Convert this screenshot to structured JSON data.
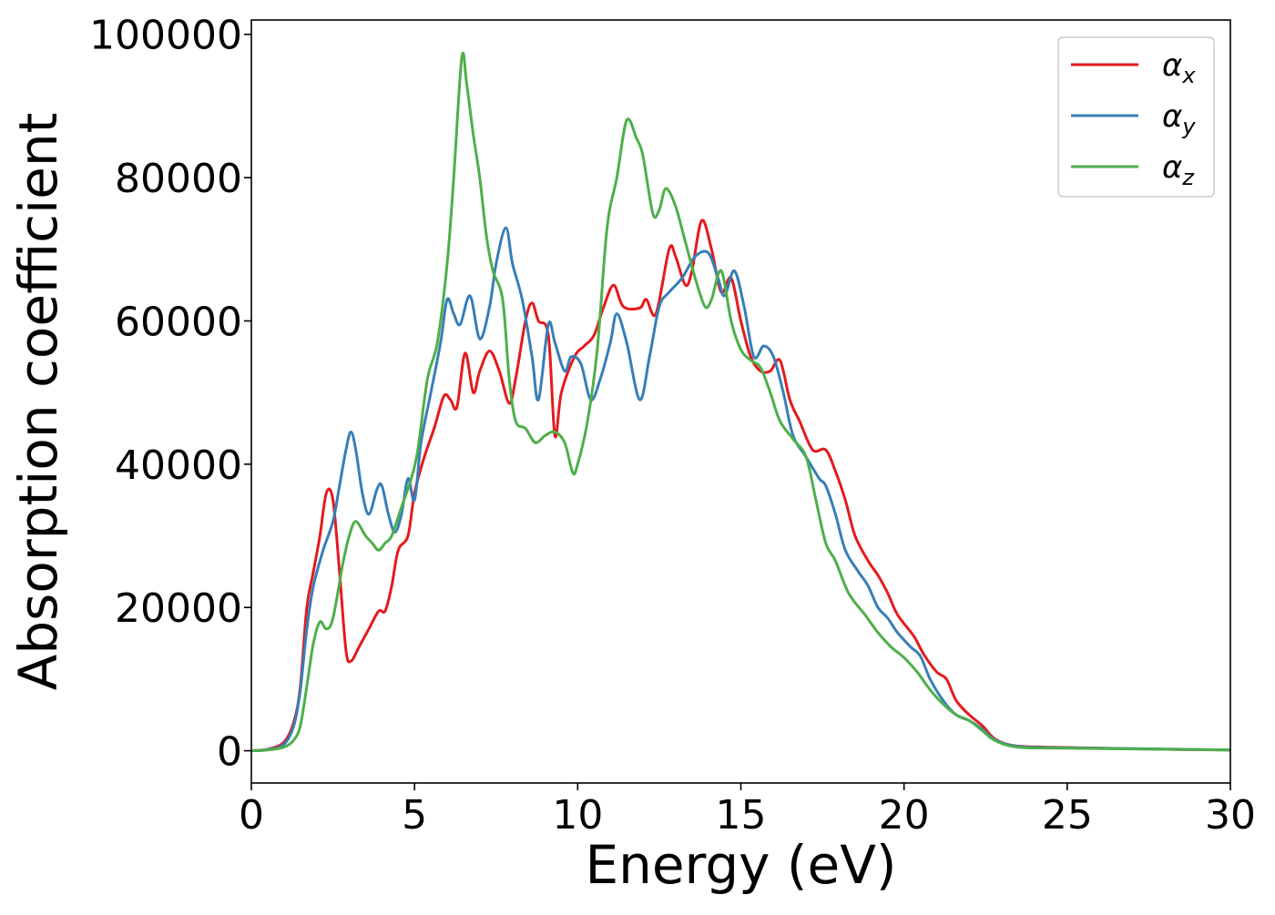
{
  "chart_data": {
    "type": "line",
    "title": "",
    "xlabel": "Energy (eV)",
    "ylabel": "Absorption coefficient",
    "xlim": [
      0,
      30
    ],
    "ylim": [
      -4500,
      102000
    ],
    "xticks": [
      0,
      5,
      10,
      15,
      20,
      25,
      30
    ],
    "xtick_labels": [
      "0",
      "5",
      "10",
      "15",
      "20",
      "25",
      "30"
    ],
    "yticks": [
      0,
      20000,
      40000,
      60000,
      80000,
      100000
    ],
    "ytick_labels": [
      "0",
      "20000",
      "40000",
      "60000",
      "80000",
      "100000"
    ],
    "grid": false,
    "legend": {
      "position": "top-right"
    },
    "series": [
      {
        "name": "α_x",
        "label_main": "α",
        "label_sub": "x",
        "color": "#e41a1c",
        "points": [
          [
            0,
            0
          ],
          [
            0.5,
            200
          ],
          [
            1.0,
            1200
          ],
          [
            1.3,
            4000
          ],
          [
            1.5,
            9000
          ],
          [
            1.7,
            20000
          ],
          [
            1.9,
            25000
          ],
          [
            2.1,
            30000
          ],
          [
            2.3,
            36000
          ],
          [
            2.5,
            35000
          ],
          [
            2.7,
            25000
          ],
          [
            2.9,
            14000
          ],
          [
            3.05,
            12500
          ],
          [
            3.3,
            14500
          ],
          [
            3.6,
            17000
          ],
          [
            3.9,
            19500
          ],
          [
            4.1,
            19500
          ],
          [
            4.3,
            23000
          ],
          [
            4.5,
            28000
          ],
          [
            4.8,
            30000
          ],
          [
            5.0,
            36000
          ],
          [
            5.3,
            41000
          ],
          [
            5.6,
            45000
          ],
          [
            5.9,
            49500
          ],
          [
            6.1,
            49000
          ],
          [
            6.3,
            48000
          ],
          [
            6.55,
            55500
          ],
          [
            6.8,
            50000
          ],
          [
            7.0,
            53000
          ],
          [
            7.3,
            55800
          ],
          [
            7.6,
            53000
          ],
          [
            7.9,
            48500
          ],
          [
            8.1,
            52000
          ],
          [
            8.4,
            60000
          ],
          [
            8.6,
            62500
          ],
          [
            8.8,
            60000
          ],
          [
            9.1,
            58000
          ],
          [
            9.3,
            44000
          ],
          [
            9.5,
            50000
          ],
          [
            9.9,
            55000
          ],
          [
            10.2,
            56500
          ],
          [
            10.5,
            58000
          ],
          [
            10.8,
            62000
          ],
          [
            11.1,
            65000
          ],
          [
            11.4,
            62000
          ],
          [
            11.9,
            61800
          ],
          [
            12.1,
            63000
          ],
          [
            12.4,
            61000
          ],
          [
            12.8,
            70000
          ],
          [
            13.0,
            69000
          ],
          [
            13.3,
            65000
          ],
          [
            13.5,
            67000
          ],
          [
            13.8,
            74000
          ],
          [
            14.1,
            70000
          ],
          [
            14.4,
            64000
          ],
          [
            14.7,
            66000
          ],
          [
            15.0,
            60000
          ],
          [
            15.3,
            55000
          ],
          [
            15.6,
            53000
          ],
          [
            15.9,
            53000
          ],
          [
            16.2,
            54500
          ],
          [
            16.5,
            49000
          ],
          [
            16.8,
            46000
          ],
          [
            17.2,
            42000
          ],
          [
            17.6,
            42000
          ],
          [
            17.9,
            39000
          ],
          [
            18.2,
            35000
          ],
          [
            18.5,
            30000
          ],
          [
            18.9,
            26500
          ],
          [
            19.2,
            24500
          ],
          [
            19.5,
            22000
          ],
          [
            19.8,
            19000
          ],
          [
            20.3,
            16000
          ],
          [
            20.6,
            13500
          ],
          [
            21.0,
            11000
          ],
          [
            21.3,
            10000
          ],
          [
            21.6,
            7000
          ],
          [
            22.0,
            5000
          ],
          [
            22.4,
            3500
          ],
          [
            22.8,
            1600
          ],
          [
            23.4,
            700
          ],
          [
            24.5,
            500
          ],
          [
            26,
            350
          ],
          [
            28,
            200
          ],
          [
            30,
            100
          ]
        ]
      },
      {
        "name": "α_y",
        "label_main": "α",
        "label_sub": "y",
        "color": "#377eb8",
        "points": [
          [
            0,
            0
          ],
          [
            0.5,
            150
          ],
          [
            1.0,
            900
          ],
          [
            1.3,
            3500
          ],
          [
            1.5,
            8500
          ],
          [
            1.7,
            17000
          ],
          [
            1.9,
            23000
          ],
          [
            2.2,
            28000
          ],
          [
            2.5,
            32000
          ],
          [
            2.7,
            37000
          ],
          [
            2.9,
            42000
          ],
          [
            3.05,
            44500
          ],
          [
            3.2,
            42000
          ],
          [
            3.4,
            36000
          ],
          [
            3.6,
            33000
          ],
          [
            3.85,
            36500
          ],
          [
            4.0,
            37000
          ],
          [
            4.2,
            33000
          ],
          [
            4.4,
            30500
          ],
          [
            4.6,
            33000
          ],
          [
            4.8,
            38000
          ],
          [
            5.0,
            35000
          ],
          [
            5.2,
            43000
          ],
          [
            5.5,
            50000
          ],
          [
            5.8,
            57000
          ],
          [
            6.0,
            63000
          ],
          [
            6.2,
            61000
          ],
          [
            6.4,
            59500
          ],
          [
            6.7,
            63500
          ],
          [
            7.0,
            57500
          ],
          [
            7.3,
            62000
          ],
          [
            7.5,
            68000
          ],
          [
            7.8,
            73000
          ],
          [
            8.0,
            68000
          ],
          [
            8.3,
            63000
          ],
          [
            8.6,
            55000
          ],
          [
            8.8,
            49000
          ],
          [
            9.1,
            59500
          ],
          [
            9.3,
            57000
          ],
          [
            9.6,
            53000
          ],
          [
            9.8,
            55000
          ],
          [
            10.1,
            54000
          ],
          [
            10.4,
            49000
          ],
          [
            10.7,
            52000
          ],
          [
            11.0,
            57000
          ],
          [
            11.2,
            61000
          ],
          [
            11.5,
            57000
          ],
          [
            11.9,
            49000
          ],
          [
            12.2,
            55000
          ],
          [
            12.5,
            62000
          ],
          [
            12.8,
            64000
          ],
          [
            13.2,
            66000
          ],
          [
            13.6,
            69000
          ],
          [
            14.0,
            69500
          ],
          [
            14.3,
            66000
          ],
          [
            14.5,
            63500
          ],
          [
            14.8,
            67000
          ],
          [
            15.1,
            62000
          ],
          [
            15.4,
            55000
          ],
          [
            15.7,
            56500
          ],
          [
            16.0,
            55000
          ],
          [
            16.3,
            50000
          ],
          [
            16.6,
            44000
          ],
          [
            17.0,
            41000
          ],
          [
            17.4,
            38000
          ],
          [
            17.6,
            37000
          ],
          [
            17.9,
            33000
          ],
          [
            18.2,
            28000
          ],
          [
            18.6,
            25000
          ],
          [
            18.9,
            23000
          ],
          [
            19.2,
            20000
          ],
          [
            19.5,
            18500
          ],
          [
            19.8,
            16500
          ],
          [
            20.2,
            14500
          ],
          [
            20.5,
            13200
          ],
          [
            20.8,
            10000
          ],
          [
            21.2,
            7000
          ],
          [
            21.6,
            5000
          ],
          [
            22.0,
            4200
          ],
          [
            22.4,
            3000
          ],
          [
            22.8,
            1500
          ],
          [
            23.5,
            600
          ],
          [
            25,
            400
          ],
          [
            27,
            300
          ],
          [
            30,
            100
          ]
        ]
      },
      {
        "name": "α_z",
        "label_main": "α",
        "label_sub": "z",
        "color": "#4daf4a",
        "points": [
          [
            0,
            0
          ],
          [
            0.5,
            100
          ],
          [
            1.0,
            500
          ],
          [
            1.3,
            1500
          ],
          [
            1.5,
            3500
          ],
          [
            1.7,
            9000
          ],
          [
            1.9,
            15000
          ],
          [
            2.1,
            18000
          ],
          [
            2.3,
            17000
          ],
          [
            2.5,
            18500
          ],
          [
            2.8,
            26000
          ],
          [
            3.0,
            30000
          ],
          [
            3.2,
            32000
          ],
          [
            3.5,
            30000
          ],
          [
            3.7,
            29000
          ],
          [
            3.9,
            28000
          ],
          [
            4.1,
            29000
          ],
          [
            4.3,
            30000
          ],
          [
            4.6,
            34000
          ],
          [
            4.9,
            38000
          ],
          [
            5.1,
            42000
          ],
          [
            5.4,
            52000
          ],
          [
            5.7,
            57000
          ],
          [
            6.0,
            68000
          ],
          [
            6.2,
            80000
          ],
          [
            6.45,
            96800
          ],
          [
            6.6,
            93000
          ],
          [
            6.8,
            86000
          ],
          [
            7.0,
            80000
          ],
          [
            7.2,
            72000
          ],
          [
            7.4,
            67000
          ],
          [
            7.7,
            63000
          ],
          [
            7.9,
            52000
          ],
          [
            8.1,
            46000
          ],
          [
            8.4,
            45000
          ],
          [
            8.7,
            43000
          ],
          [
            9.0,
            44000
          ],
          [
            9.3,
            44500
          ],
          [
            9.6,
            43000
          ],
          [
            9.85,
            38800
          ],
          [
            10.0,
            40000
          ],
          [
            10.3,
            46000
          ],
          [
            10.6,
            56000
          ],
          [
            10.9,
            73000
          ],
          [
            11.2,
            80000
          ],
          [
            11.5,
            88000
          ],
          [
            11.8,
            85500
          ],
          [
            12.0,
            83000
          ],
          [
            12.3,
            75000
          ],
          [
            12.5,
            75500
          ],
          [
            12.7,
            78500
          ],
          [
            13.0,
            76000
          ],
          [
            13.3,
            71000
          ],
          [
            13.6,
            66000
          ],
          [
            13.9,
            62000
          ],
          [
            14.1,
            63000
          ],
          [
            14.4,
            67000
          ],
          [
            14.7,
            60000
          ],
          [
            15.0,
            56000
          ],
          [
            15.3,
            54500
          ],
          [
            15.6,
            53500
          ],
          [
            15.9,
            50000
          ],
          [
            16.2,
            46000
          ],
          [
            16.6,
            43500
          ],
          [
            17.0,
            41000
          ],
          [
            17.3,
            35000
          ],
          [
            17.6,
            29000
          ],
          [
            17.9,
            26500
          ],
          [
            18.3,
            22000
          ],
          [
            18.8,
            19000
          ],
          [
            19.2,
            16500
          ],
          [
            19.6,
            14500
          ],
          [
            20.0,
            13000
          ],
          [
            20.4,
            11000
          ],
          [
            20.8,
            8500
          ],
          [
            21.2,
            6500
          ],
          [
            21.6,
            5000
          ],
          [
            22.0,
            4200
          ],
          [
            22.4,
            2800
          ],
          [
            22.8,
            1400
          ],
          [
            23.5,
            500
          ],
          [
            25,
            350
          ],
          [
            27,
            250
          ],
          [
            30,
            100
          ]
        ]
      }
    ]
  }
}
